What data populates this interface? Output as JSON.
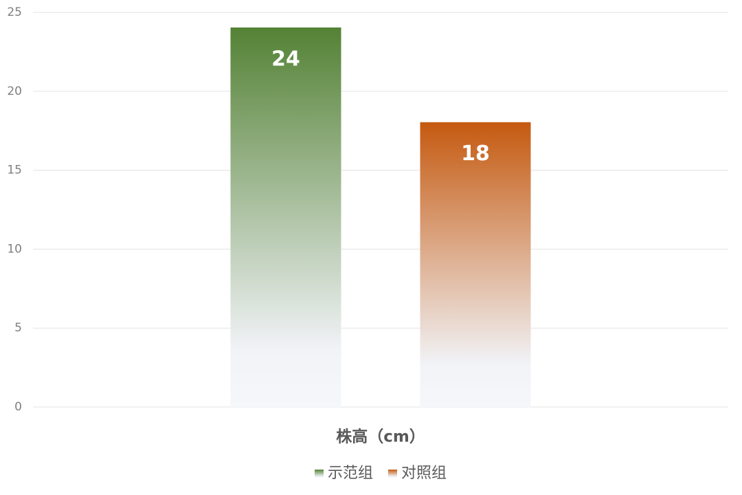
{
  "chart_data": {
    "type": "bar",
    "categories": [
      "株高（cm）"
    ],
    "series": [
      {
        "name": "示范组",
        "color": "#548235",
        "values": [
          24
        ]
      },
      {
        "name": "对照组",
        "color": "#c55a11",
        "values": [
          18
        ]
      }
    ],
    "ylim": [
      0,
      25
    ],
    "yticks": [
      0,
      5,
      10,
      15,
      20,
      25
    ],
    "grid": true,
    "legend": "bottom"
  }
}
